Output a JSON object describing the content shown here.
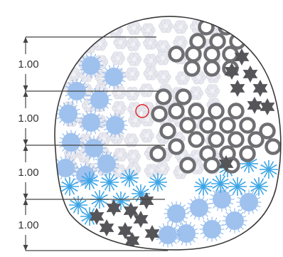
{
  "dimension_labels": [
    "1.00",
    "1.00",
    "1.00",
    "1.00"
  ],
  "colors": {
    "background": "#ffffff",
    "boundary": "#3a3a3a",
    "dimension_line": "#444444",
    "blue_dot_fill": "#9ec1ee",
    "blue_dot_rays": "#7fb0ea",
    "cyan_burst": "#3fa6e6",
    "pale_flower": "#e7e7ef",
    "ring": "#6f6f73",
    "star": "#555559",
    "center_marker": "#e02020"
  },
  "clusters": [
    {
      "kind": "pale-flower"
    },
    {
      "kind": "blue-dot"
    },
    {
      "kind": "cyan-burst"
    },
    {
      "kind": "ring"
    },
    {
      "kind": "dark-star"
    }
  ],
  "center_marker": {
    "shape": "circle-outline"
  }
}
